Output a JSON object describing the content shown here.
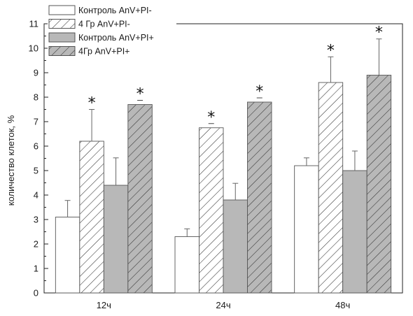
{
  "chart_data": {
    "type": "bar",
    "title": "",
    "xlabel": "",
    "ylabel": "количество клеток, %",
    "ylim": [
      0,
      11
    ],
    "yticks": [
      0,
      1,
      2,
      3,
      4,
      5,
      6,
      7,
      8,
      9,
      10,
      11
    ],
    "categories": [
      "12ч",
      "24ч",
      "48ч"
    ],
    "grid": false,
    "legend_position": "top-left",
    "series": [
      {
        "name": "Контроль AnV+PI-",
        "values": [
          3.1,
          2.3,
          5.2
        ],
        "errors": [
          0.68,
          0.32,
          0.32
        ],
        "significant": [
          false,
          false,
          false
        ],
        "fill": "#ffffff",
        "hatch": false
      },
      {
        "name": "4 Гр AnV+PI-",
        "values": [
          6.2,
          6.75,
          8.6
        ],
        "errors": [
          1.3,
          0,
          1.05
        ],
        "significant": [
          true,
          true,
          true
        ],
        "fill": "#ffffff",
        "hatch": true
      },
      {
        "name": "Контроль AnV+PI+",
        "values": [
          4.4,
          3.8,
          5.0
        ],
        "errors": [
          1.12,
          0.68,
          0.8
        ],
        "significant": [
          false,
          false,
          false
        ],
        "fill": "#b8b8b8",
        "hatch": false
      },
      {
        "name": "4Гр AnV+PI+",
        "values": [
          7.7,
          7.8,
          8.9
        ],
        "errors": [
          0,
          0,
          1.48
        ],
        "significant": [
          true,
          true,
          true
        ],
        "fill": "#b8b8b8",
        "hatch": true
      }
    ],
    "significance_marker": "*"
  }
}
